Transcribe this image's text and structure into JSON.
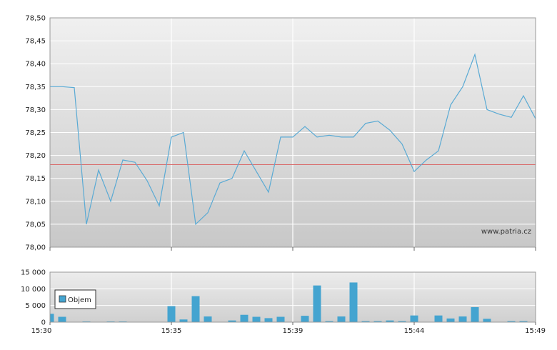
{
  "chart_data": [
    {
      "type": "line",
      "ylim": [
        78.0,
        78.5
      ],
      "yticks": [
        "78,00",
        "78,05",
        "78,10",
        "78,15",
        "78,20",
        "78,25",
        "78,30",
        "78,35",
        "78,40",
        "78,45",
        "78,50"
      ],
      "xtick_labels": [
        "15:30",
        "15:35",
        "15:39",
        "15:44",
        "15:49"
      ],
      "reference_value": 78.18,
      "watermark": "www.patria.cz",
      "colors": {
        "line": "#5aaad4",
        "reference": "#d96a6a"
      },
      "x_index": [
        0,
        1,
        2,
        3,
        4,
        5,
        6,
        7,
        8,
        9,
        10,
        11,
        12,
        13,
        14,
        15,
        16,
        17,
        18,
        19,
        20,
        21,
        22,
        23,
        24,
        25,
        26,
        27,
        28,
        29,
        30,
        31,
        32,
        33,
        34,
        35,
        36,
        37,
        38,
        39,
        40
      ],
      "values": [
        78.35,
        78.35,
        78.348,
        78.05,
        78.168,
        78.1,
        78.19,
        78.185,
        78.145,
        78.09,
        78.24,
        78.25,
        78.05,
        78.075,
        78.14,
        78.15,
        78.21,
        78.165,
        78.12,
        78.24,
        78.24,
        78.263,
        78.24,
        78.244,
        78.24,
        78.24,
        78.27,
        78.275,
        78.255,
        78.225,
        78.165,
        78.19,
        78.21,
        78.31,
        78.35,
        78.42,
        78.3,
        78.29,
        78.283,
        78.33,
        78.28
      ]
    },
    {
      "type": "bar",
      "legend": "Objem",
      "legend_position": "left",
      "ylim": [
        0,
        15000
      ],
      "yticks": [
        "0",
        "5 000",
        "10 000",
        "15 000"
      ],
      "xtick_labels": [
        "15:30",
        "15:35",
        "15:39",
        "15:44",
        "15:49"
      ],
      "colors": {
        "bar": "#44a4d0"
      },
      "x_index": [
        0,
        1,
        3,
        5,
        6,
        10,
        11,
        12,
        13,
        15,
        16,
        17,
        18,
        19,
        21,
        22,
        23,
        24,
        25,
        26,
        27,
        28,
        29,
        30,
        32,
        33,
        34,
        35,
        36,
        38,
        39
      ],
      "values": [
        2500,
        1600,
        200,
        200,
        200,
        4800,
        800,
        7800,
        1700,
        500,
        2200,
        1600,
        1200,
        1600,
        1900,
        11000,
        300,
        1700,
        11900,
        300,
        300,
        500,
        300,
        2000,
        2000,
        1100,
        1700,
        4500,
        1000,
        300,
        300
      ]
    }
  ]
}
